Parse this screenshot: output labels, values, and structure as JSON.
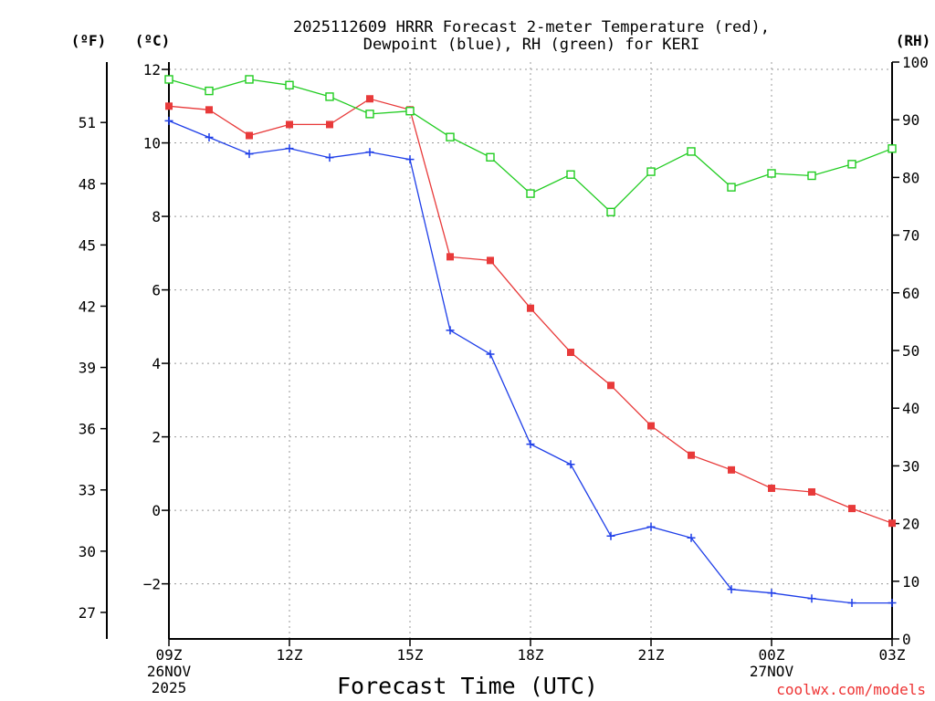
{
  "title_line1": "2025112609 HRRR Forecast 2-meter Temperature (red),",
  "title_line2": "Dewpoint (blue), RH (green) for KERI",
  "unit_f": "(ºF)",
  "unit_c": "(ºC)",
  "unit_rh": "(RH)",
  "credit": "coolwx.com/models",
  "colors": {
    "temperature": "#e83a3a",
    "dewpoint": "#1e3ee8",
    "rh": "#20cc20",
    "grid": "#999999"
  },
  "chart_data": {
    "type": "line",
    "title": "2025112609 HRRR Forecast 2-meter Temperature (red), Dewpoint (blue), RH (green) for KERI",
    "xlabel": "Forecast Time (UTC)",
    "ylabel_left_c": "(ºC)",
    "ylabel_left_f": "(ºF)",
    "ylabel_right": "(RH)",
    "x_hours": [
      0,
      1,
      2,
      3,
      4,
      5,
      6,
      7,
      8,
      9,
      10,
      11,
      12,
      13,
      14,
      15,
      16,
      17,
      18
    ],
    "xlim": [
      0,
      18
    ],
    "ylim_c": [
      -3.5,
      12.2
    ],
    "ylim_rh": [
      0,
      100
    ],
    "x_ticks": [
      {
        "hour": 0,
        "line1": "09Z",
        "line2": "26NOV",
        "line3": "2025"
      },
      {
        "hour": 3,
        "line1": "12Z",
        "line2": "",
        "line3": ""
      },
      {
        "hour": 6,
        "line1": "15Z",
        "line2": "",
        "line3": ""
      },
      {
        "hour": 9,
        "line1": "18Z",
        "line2": "",
        "line3": ""
      },
      {
        "hour": 12,
        "line1": "21Z",
        "line2": "",
        "line3": ""
      },
      {
        "hour": 15,
        "line1": "00Z",
        "line2": "27NOV",
        "line3": ""
      },
      {
        "hour": 18,
        "line1": "03Z",
        "line2": "",
        "line3": ""
      }
    ],
    "c_ticks": [
      -2,
      0,
      2,
      4,
      6,
      8,
      10,
      12
    ],
    "f_ticks": [
      27,
      30,
      33,
      36,
      39,
      42,
      45,
      48,
      51
    ],
    "rh_ticks": [
      0,
      10,
      20,
      30,
      40,
      50,
      60,
      70,
      80,
      90,
      100
    ],
    "series": [
      {
        "name": "Temperature",
        "unit": "C",
        "marker": "square",
        "values": [
          11.0,
          10.9,
          10.2,
          10.5,
          10.5,
          11.2,
          10.9,
          6.9,
          6.8,
          5.5,
          4.3,
          3.4,
          2.3,
          1.5,
          1.1,
          0.6,
          0.5,
          0.05,
          -0.35
        ]
      },
      {
        "name": "Dewpoint",
        "unit": "C",
        "marker": "plus",
        "values": [
          10.6,
          10.15,
          9.7,
          9.85,
          9.6,
          9.75,
          9.55,
          4.9,
          4.25,
          1.8,
          1.25,
          -0.7,
          -0.45,
          -0.75,
          -2.15,
          -2.25,
          -2.4,
          -2.52,
          -2.52
        ]
      },
      {
        "name": "RH",
        "unit": "%",
        "marker": "open-square",
        "values": [
          97,
          95,
          97,
          96,
          94,
          91,
          91.5,
          87,
          83.5,
          77.2,
          80.5,
          74,
          81,
          84.5,
          78.3,
          80.7,
          80.3,
          82.3,
          85
        ]
      }
    ]
  }
}
